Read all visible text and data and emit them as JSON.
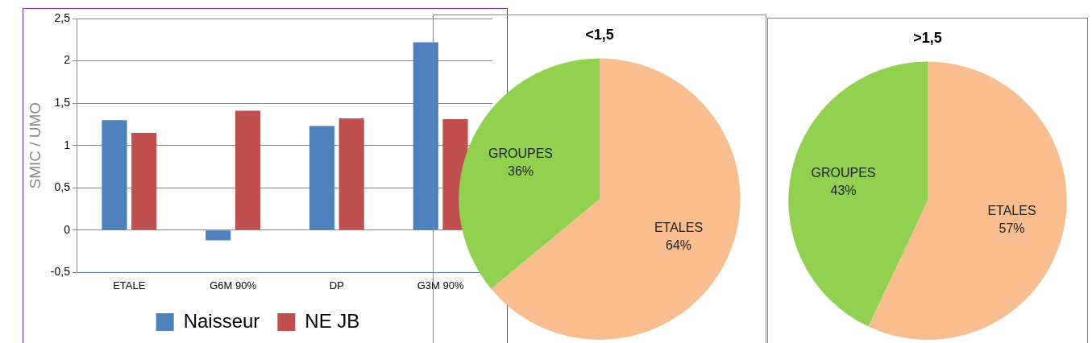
{
  "chart_data": [
    {
      "type": "bar",
      "ylabel": "SMIC / UMO",
      "categories": [
        "ETALE",
        "G6M 90%",
        "DP",
        "G3M 90%"
      ],
      "series": [
        {
          "name": "Naisseur",
          "color": "#4f81bd",
          "values": [
            1.3,
            -0.12,
            1.23,
            2.22
          ]
        },
        {
          "name": "NE JB",
          "color": "#c0504d",
          "values": [
            1.15,
            1.41,
            1.32,
            1.31
          ]
        }
      ],
      "ylim": [
        -0.5,
        2.5
      ],
      "yticks": [
        {
          "value": -0.5,
          "label": "-0,5"
        },
        {
          "value": 0,
          "label": "0"
        },
        {
          "value": 0.5,
          "label": "0,5"
        },
        {
          "value": 1,
          "label": "1"
        },
        {
          "value": 1.5,
          "label": "1,5"
        },
        {
          "value": 2,
          "label": "2"
        },
        {
          "value": 2.5,
          "label": "2,5"
        }
      ],
      "grid": "y",
      "legend": "bottom"
    },
    {
      "type": "pie",
      "title": "<1,5",
      "categories": [
        "ETALES",
        "GROUPES"
      ],
      "values": [
        64,
        36
      ],
      "colors": [
        "#f9be8f",
        "#92d050"
      ],
      "value_labels": [
        "64%",
        "36%"
      ]
    },
    {
      "type": "pie",
      "title": ">1,5",
      "categories": [
        "ETALES",
        "GROUPES"
      ],
      "values": [
        57,
        43
      ],
      "colors": [
        "#f9be8f",
        "#92d050"
      ],
      "value_labels": [
        "57%",
        "43%"
      ]
    }
  ]
}
